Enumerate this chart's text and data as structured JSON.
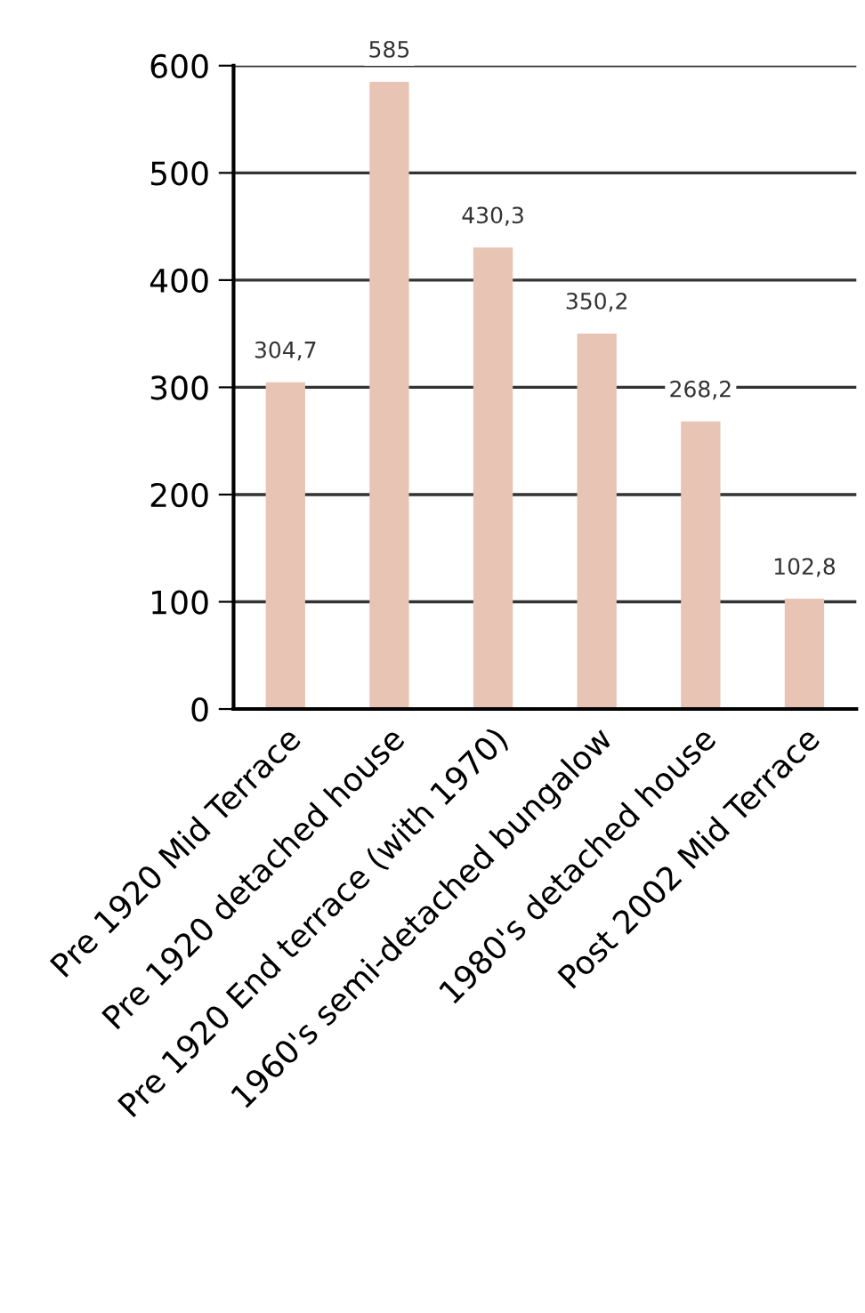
{
  "chart_data": {
    "type": "bar",
    "categories": [
      "Pre 1920 Mid Terrace",
      "Pre 1920 detached house",
      "Pre 1920 End terrace (with 1970)",
      "1960's semi-detached bungalow",
      "1980's detached house",
      "Post 2002 Mid Terrace"
    ],
    "values": [
      304.7,
      585,
      430.3,
      350.2,
      268.2,
      102.8
    ],
    "value_labels": [
      "304,7",
      "585",
      "430,3",
      "350,2",
      "268,2",
      "102,8"
    ],
    "color": "#e8c4b4",
    "ylim": [
      0,
      600
    ],
    "yticks": [
      0,
      100,
      200,
      300,
      400,
      500,
      600
    ],
    "grid": "y",
    "legend": false
  }
}
